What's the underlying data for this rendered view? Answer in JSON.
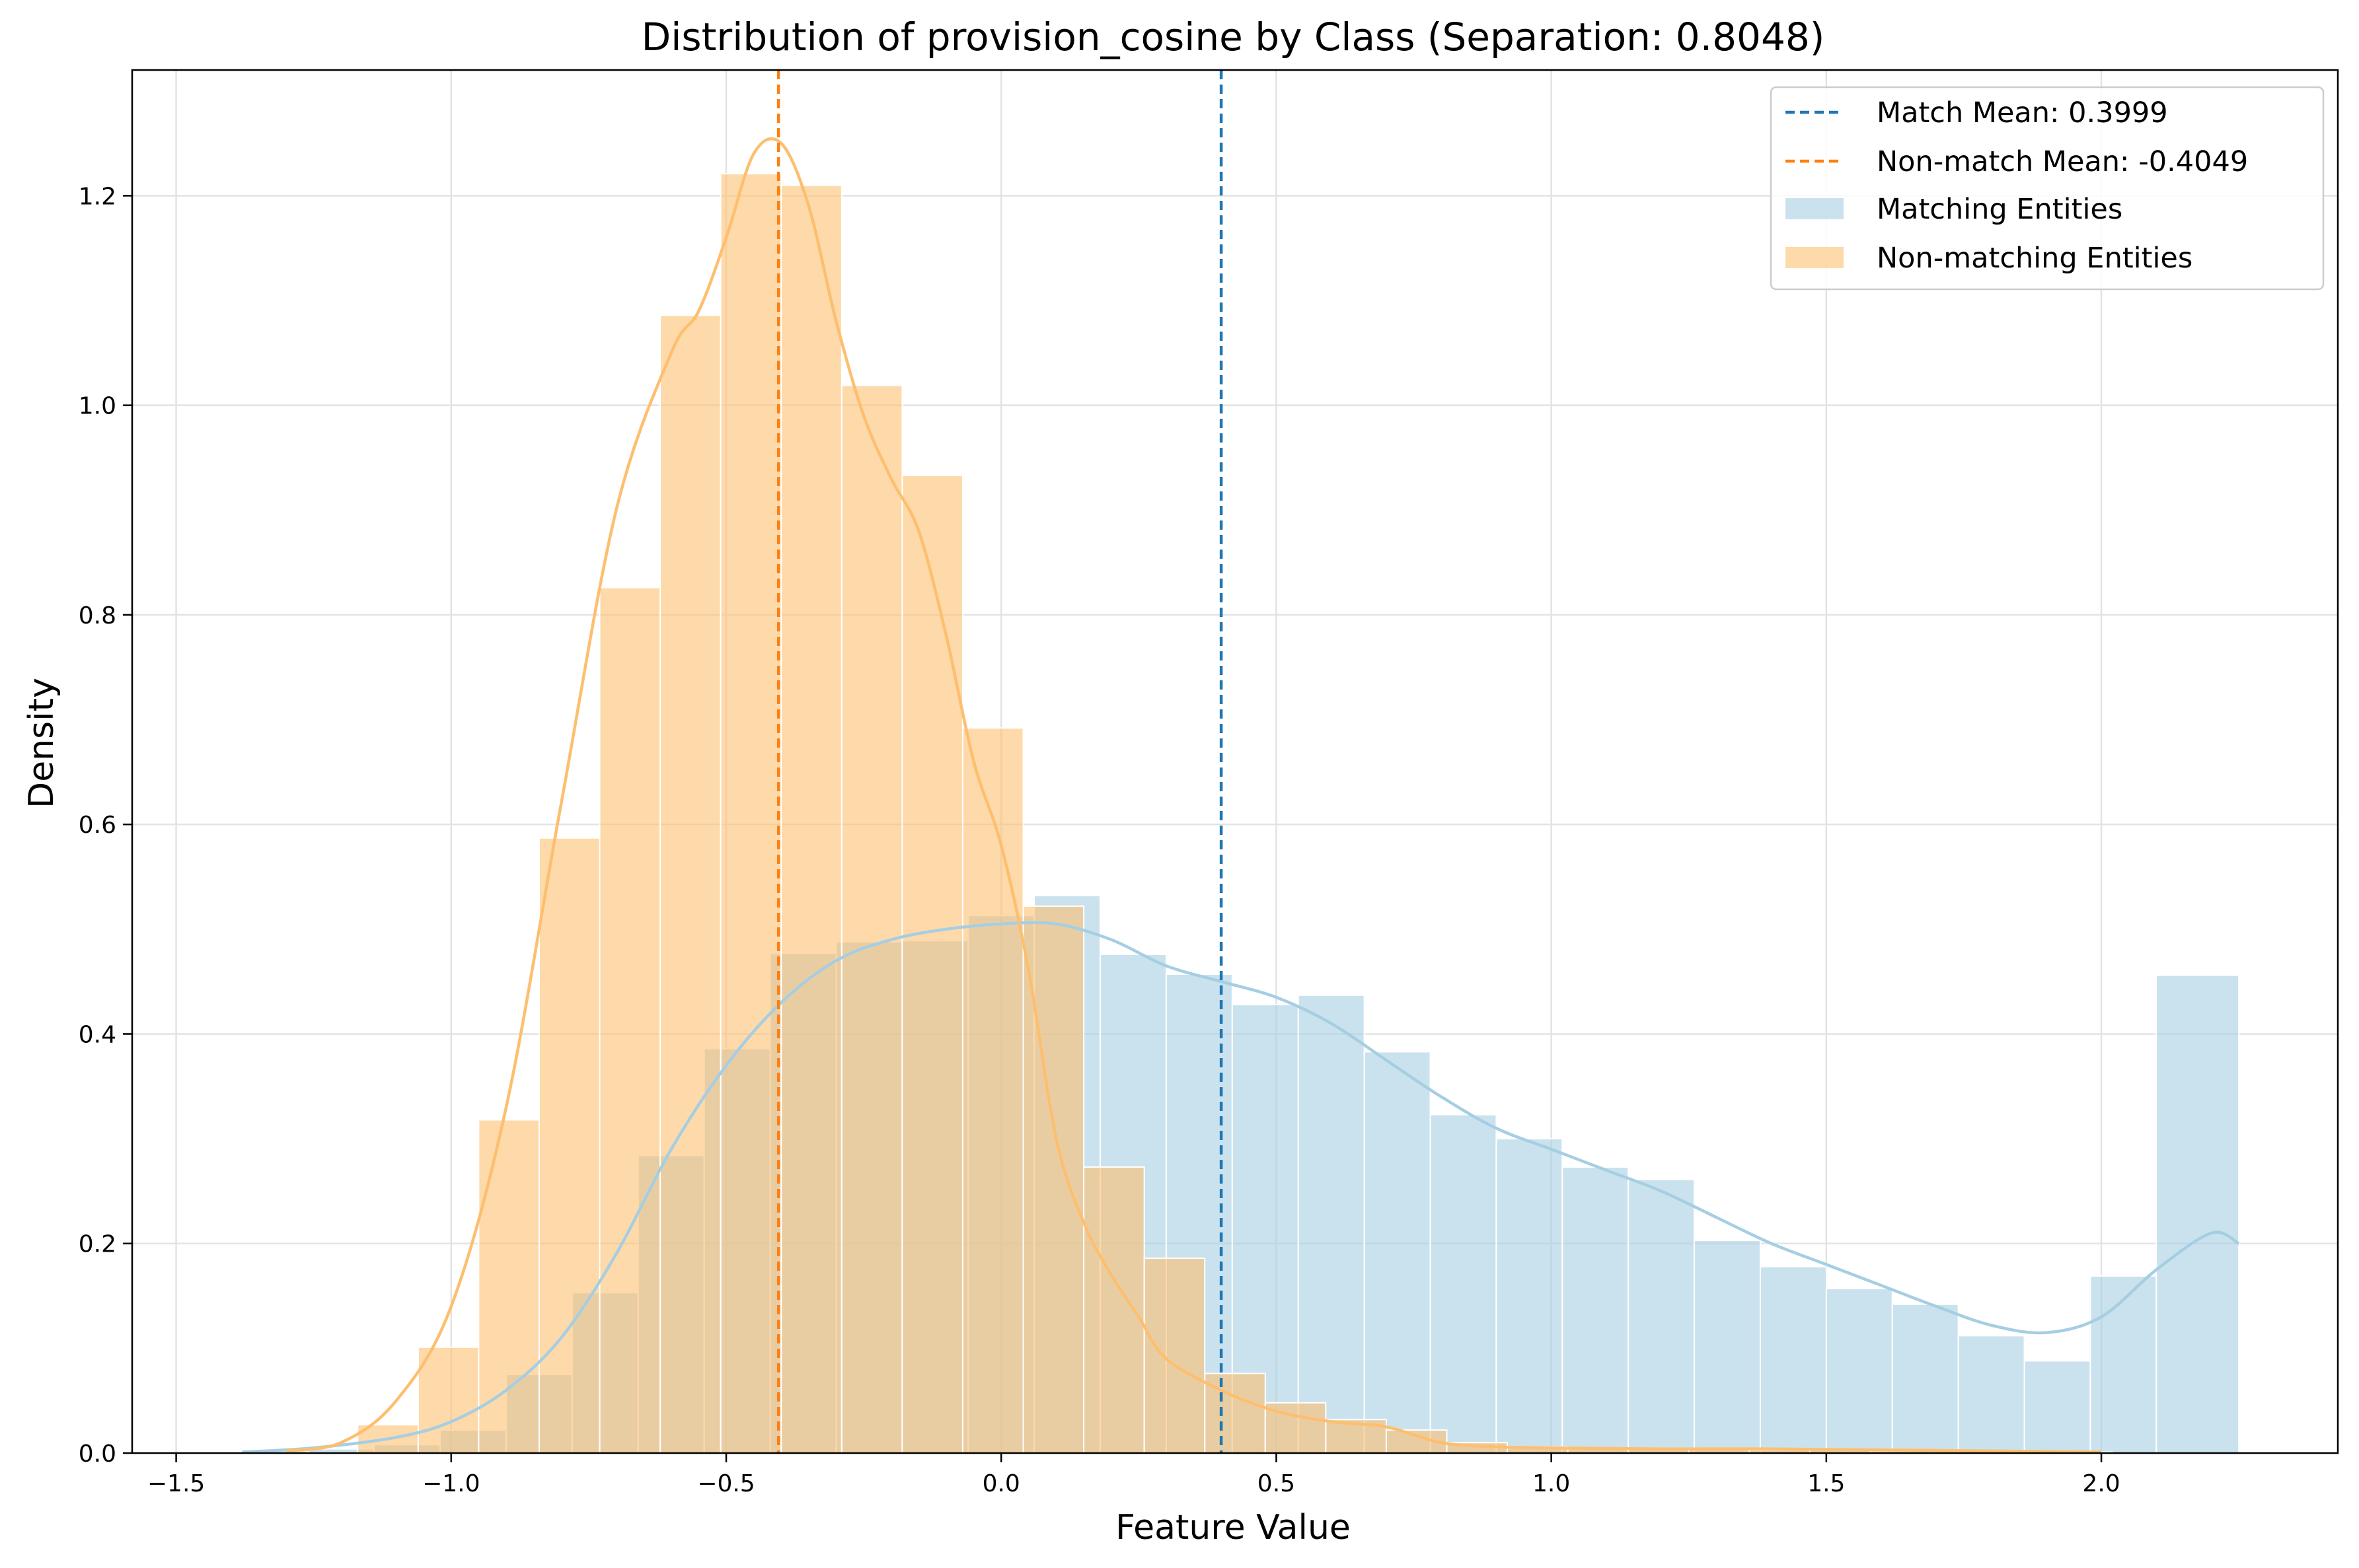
{
  "chart_data": {
    "type": "histogram",
    "title": "Distribution of provision_cosine by Class (Separation: 0.8048)",
    "xlabel": "Feature Value",
    "ylabel": "Density",
    "xlim": [
      -1.58,
      2.43
    ],
    "ylim": [
      0,
      1.32
    ],
    "xticks": [
      -1.5,
      -1.0,
      -0.5,
      0.0,
      0.5,
      1.0,
      1.5,
      2.0
    ],
    "xtick_labels": [
      "−1.5",
      "−1.0",
      "−0.5",
      "0.0",
      "0.5",
      "1.0",
      "1.5",
      "2.0"
    ],
    "yticks": [
      0.0,
      0.2,
      0.4,
      0.6,
      0.8,
      1.0,
      1.2
    ],
    "ytick_labels": [
      "0.0",
      "0.2",
      "0.4",
      "0.6",
      "0.8",
      "1.0",
      "1.2"
    ],
    "grid": true,
    "legend_position": "top-right",
    "series": [
      {
        "name": "Matching Entities",
        "color": "#a6cee3",
        "bin_edges": [
          -1.38,
          -1.26,
          -1.14,
          -1.02,
          -0.9,
          -0.78,
          -0.66,
          -0.54,
          -0.42,
          -0.3,
          -0.18,
          -0.06,
          0.06,
          0.18,
          0.3,
          0.42,
          0.54,
          0.66,
          0.78,
          0.9,
          1.02,
          1.14,
          1.26,
          1.38,
          1.5,
          1.62,
          1.74,
          1.86,
          1.98,
          2.1,
          2.25
        ],
        "values": [
          0.002,
          0.004,
          0.008,
          0.022,
          0.075,
          0.153,
          0.284,
          0.386,
          0.477,
          0.488,
          0.489,
          0.513,
          0.532,
          0.476,
          0.457,
          0.428,
          0.437,
          0.383,
          0.323,
          0.3,
          0.273,
          0.261,
          0.203,
          0.178,
          0.157,
          0.142,
          0.112,
          0.088,
          0.169,
          0.456
        ],
        "kde": {
          "x": [
            -1.38,
            -1.25,
            -1.1,
            -1.0,
            -0.9,
            -0.8,
            -0.7,
            -0.6,
            -0.5,
            -0.4,
            -0.3,
            -0.2,
            -0.1,
            0.0,
            0.1,
            0.2,
            0.3,
            0.4,
            0.5,
            0.6,
            0.7,
            0.8,
            0.9,
            1.0,
            1.1,
            1.2,
            1.3,
            1.4,
            1.5,
            1.6,
            1.7,
            1.8,
            1.9,
            2.0,
            2.1,
            2.2,
            2.25
          ],
          "y": [
            0.001,
            0.005,
            0.015,
            0.03,
            0.06,
            0.11,
            0.19,
            0.29,
            0.37,
            0.43,
            0.47,
            0.49,
            0.5,
            0.505,
            0.505,
            0.49,
            0.465,
            0.45,
            0.435,
            0.41,
            0.375,
            0.34,
            0.31,
            0.29,
            0.27,
            0.25,
            0.225,
            0.2,
            0.18,
            0.16,
            0.14,
            0.122,
            0.115,
            0.13,
            0.175,
            0.21,
            0.2
          ]
        }
      },
      {
        "name": "Non-matching Entities",
        "color": "#fdbf6f",
        "bin_edges": [
          -1.17,
          -1.06,
          -0.95,
          -0.84,
          -0.73,
          -0.62,
          -0.51,
          -0.4,
          -0.29,
          -0.18,
          -0.07,
          0.04,
          0.15,
          0.26,
          0.37,
          0.48,
          0.59,
          0.7,
          0.81,
          0.92,
          1.03,
          1.14,
          1.25,
          1.36,
          1.47,
          1.58,
          1.69,
          1.8,
          1.91,
          2.02
        ],
        "values": [
          0.027,
          0.101,
          0.318,
          0.587,
          0.826,
          1.086,
          1.221,
          1.21,
          1.019,
          0.933,
          0.692,
          0.522,
          0.273,
          0.186,
          0.076,
          0.048,
          0.032,
          0.022,
          0.01,
          0.006,
          0.004,
          0.004,
          0.004,
          0.003,
          0.003,
          0.002,
          0.002,
          0.001,
          0.001
        ],
        "kde": {
          "x": [
            -1.3,
            -1.2,
            -1.1,
            -1.0,
            -0.9,
            -0.8,
            -0.7,
            -0.6,
            -0.55,
            -0.5,
            -0.45,
            -0.4,
            -0.35,
            -0.3,
            -0.25,
            -0.2,
            -0.15,
            -0.1,
            -0.05,
            0.0,
            0.05,
            0.1,
            0.15,
            0.2,
            0.25,
            0.3,
            0.4,
            0.5,
            0.6,
            0.7,
            0.8,
            0.9,
            1.0,
            1.2,
            1.4,
            1.6,
            1.8,
            2.0
          ],
          "y": [
            0.002,
            0.01,
            0.05,
            0.14,
            0.33,
            0.62,
            0.9,
            1.05,
            1.09,
            1.16,
            1.24,
            1.25,
            1.19,
            1.08,
            0.99,
            0.93,
            0.88,
            0.78,
            0.66,
            0.58,
            0.46,
            0.3,
            0.22,
            0.17,
            0.13,
            0.09,
            0.06,
            0.04,
            0.03,
            0.025,
            0.01,
            0.006,
            0.005,
            0.004,
            0.004,
            0.003,
            0.002,
            0.001
          ]
        }
      }
    ],
    "mean_lines": [
      {
        "label": "Match Mean: 0.3999",
        "x": 0.3999,
        "color": "#1f77b4"
      },
      {
        "label": "Non-match Mean: -0.4049",
        "x": -0.4049,
        "color": "#ff7f0e"
      }
    ]
  }
}
